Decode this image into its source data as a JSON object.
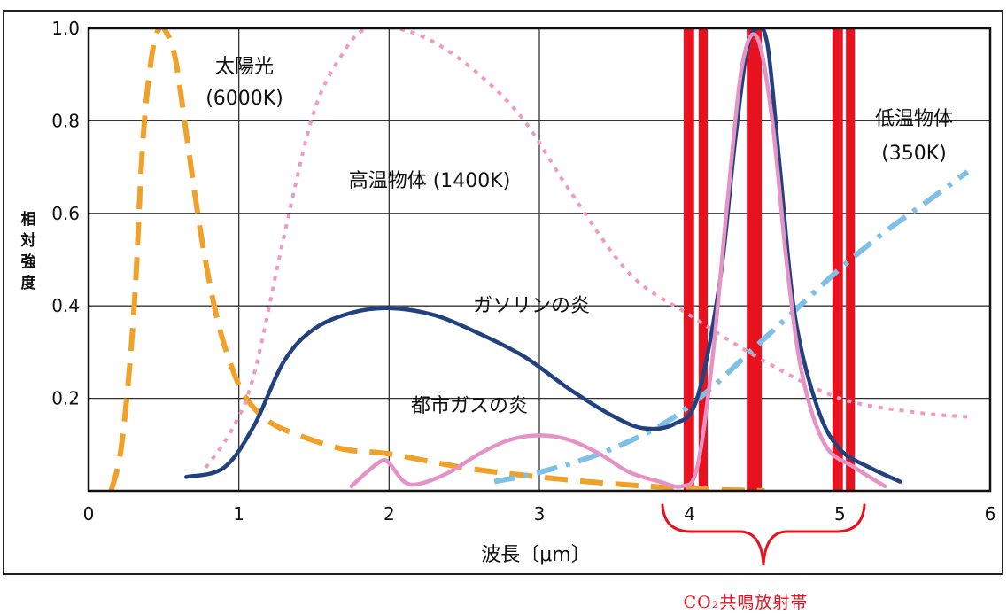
{
  "chart_data": {
    "type": "line",
    "ylabel_chars": [
      "相",
      "対",
      "強",
      "度"
    ],
    "xlabel": "波長〔μm〕",
    "xlim": [
      0,
      6
    ],
    "ylim": [
      0,
      1.0
    ],
    "x_ticks": [
      "0",
      "1",
      "2",
      "3",
      "4",
      "5",
      "6"
    ],
    "y_ticks": [
      {
        "value": 1.0,
        "label": "1.0"
      },
      {
        "value": 0.8,
        "label": "0.8"
      },
      {
        "value": 0.6,
        "label": "0.6"
      },
      {
        "value": 0.4,
        "label": "0.4"
      },
      {
        "value": 0.2,
        "label": "0.2"
      }
    ],
    "grid": true,
    "bands": [
      {
        "from": 3.96,
        "to": 4.03,
        "color": "#e8121e"
      },
      {
        "from": 4.06,
        "to": 4.12,
        "color": "#e8121e"
      },
      {
        "from": 4.38,
        "to": 4.48,
        "color": "#e8121e"
      },
      {
        "from": 4.95,
        "to": 5.02,
        "color": "#e8121e"
      },
      {
        "from": 5.04,
        "to": 5.1,
        "color": "#e8121e"
      }
    ],
    "series": [
      {
        "name": "太陽光",
        "name2": "(6000K)",
        "color": "#f0a12a",
        "style": "dash-long",
        "x": [
          0.15,
          0.22,
          0.3,
          0.36,
          0.42,
          0.47,
          0.52,
          0.58,
          0.66,
          0.75,
          0.85,
          0.95,
          1.05,
          1.2,
          1.4,
          1.7,
          2.0,
          2.5,
          3.0,
          3.5,
          4.0,
          4.5
        ],
        "y": [
          0.0,
          0.1,
          0.38,
          0.75,
          0.94,
          1.0,
          0.99,
          0.93,
          0.75,
          0.55,
          0.38,
          0.27,
          0.2,
          0.15,
          0.12,
          0.09,
          0.08,
          0.05,
          0.03,
          0.015,
          0.005,
          0.0
        ]
      },
      {
        "name": "高温物体 (1400K)",
        "color": "#f09ac2",
        "style": "dot",
        "x": [
          0.78,
          0.95,
          1.1,
          1.3,
          1.5,
          1.7,
          1.85,
          2.05,
          2.3,
          2.6,
          2.9,
          3.2,
          3.6,
          4.0,
          4.5,
          5.0,
          5.5,
          5.85
        ],
        "y": [
          0.05,
          0.13,
          0.25,
          0.55,
          0.82,
          0.95,
          1.0,
          1.0,
          0.97,
          0.9,
          0.8,
          0.65,
          0.47,
          0.38,
          0.28,
          0.2,
          0.17,
          0.16
        ]
      },
      {
        "name": "低温物体",
        "name2": "(350K)",
        "color": "#7fc0e6",
        "style": "dashdot",
        "x": [
          2.7,
          3.0,
          3.4,
          3.8,
          4.1,
          4.4,
          4.7,
          5.0,
          5.3,
          5.6,
          5.85
        ],
        "y": [
          0.02,
          0.04,
          0.08,
          0.14,
          0.21,
          0.3,
          0.39,
          0.48,
          0.56,
          0.63,
          0.69
        ]
      },
      {
        "name": "ガソリンの炎",
        "color": "#22417f",
        "style": "solid",
        "x": [
          0.65,
          0.9,
          1.1,
          1.3,
          1.5,
          1.75,
          2.0,
          2.3,
          2.6,
          2.9,
          3.2,
          3.5,
          3.7,
          3.9,
          4.05,
          4.2,
          4.3,
          4.38,
          4.45,
          4.52,
          4.6,
          4.7,
          4.85,
          5.0,
          5.2,
          5.4
        ],
        "y": [
          0.03,
          0.05,
          0.14,
          0.28,
          0.35,
          0.385,
          0.395,
          0.38,
          0.34,
          0.29,
          0.22,
          0.16,
          0.135,
          0.145,
          0.2,
          0.45,
          0.75,
          0.95,
          1.0,
          0.96,
          0.7,
          0.38,
          0.18,
          0.09,
          0.05,
          0.02
        ]
      },
      {
        "name": "都市ガスの炎",
        "color": "#e592c4",
        "style": "solid",
        "x": [
          1.75,
          1.85,
          1.95,
          2.0,
          2.1,
          2.2,
          2.4,
          2.6,
          2.8,
          3.0,
          3.2,
          3.4,
          3.6,
          3.8,
          3.95,
          4.05,
          4.15,
          4.25,
          4.35,
          4.45,
          4.55,
          4.65,
          4.75,
          4.9,
          5.1,
          5.3
        ],
        "y": [
          0.01,
          0.04,
          0.065,
          0.06,
          0.02,
          0.015,
          0.04,
          0.08,
          0.11,
          0.12,
          0.11,
          0.08,
          0.04,
          0.02,
          0.01,
          0.05,
          0.28,
          0.62,
          0.92,
          0.98,
          0.8,
          0.48,
          0.25,
          0.1,
          0.05,
          0.01
        ]
      }
    ]
  },
  "annotations": {
    "sun_line1": "太陽光",
    "sun_line2": "(6000K)",
    "hot": "高温物体 (1400K)",
    "cold_line1": "低温物体",
    "cold_line2": "(350K)",
    "gasoline": "ガソリンの炎",
    "citygas": "都市ガスの炎"
  },
  "band_note": "CO₂共鳴放射帯"
}
